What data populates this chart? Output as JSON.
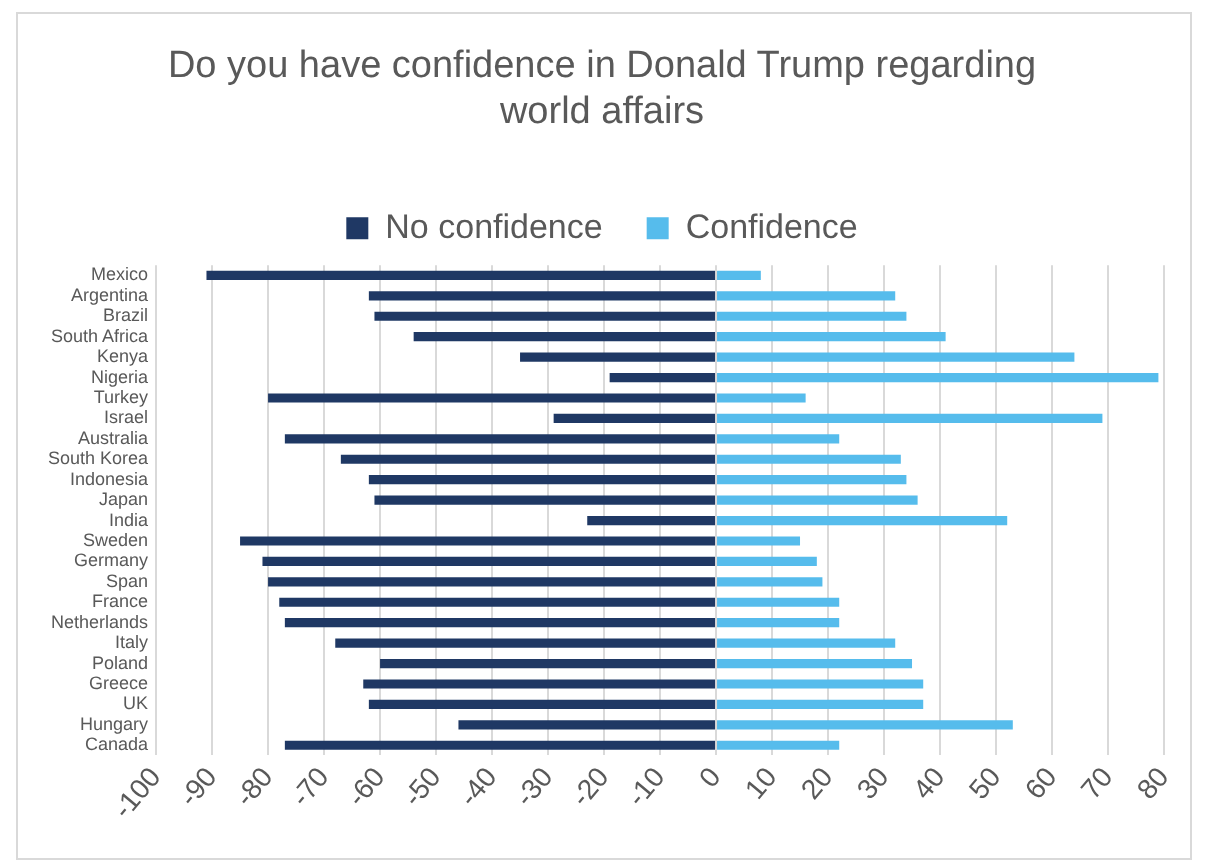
{
  "chart_data": {
    "type": "bar",
    "orientation": "horizontal",
    "stacked": true,
    "title": "Do you have confidence in Donald Trump regarding world affairs",
    "categories": [
      "Mexico",
      "Argentina",
      "Brazil",
      "South Africa",
      "Kenya",
      "Nigeria",
      "Turkey",
      "Israel",
      "Australia",
      "South Korea",
      "Indonesia",
      "Japan",
      "India",
      "Sweden",
      "Germany",
      "Span",
      "France",
      "Netherlands",
      "Italy",
      "Poland",
      "Greece",
      "UK",
      "Hungary",
      "Canada"
    ],
    "series": [
      {
        "name": "No confidence",
        "color": "#1f3864",
        "values": [
          -91,
          -62,
          -61,
          -54,
          -35,
          -19,
          -80,
          -29,
          -77,
          -67,
          -62,
          -61,
          -23,
          -85,
          -81,
          -80,
          -78,
          -77,
          -68,
          -60,
          -63,
          -62,
          -46,
          -77
        ]
      },
      {
        "name": "Confidence",
        "color": "#56bcec",
        "values": [
          8,
          32,
          34,
          41,
          64,
          79,
          16,
          69,
          22,
          33,
          34,
          36,
          52,
          15,
          18,
          19,
          22,
          22,
          32,
          35,
          37,
          37,
          53,
          22
        ]
      }
    ],
    "xlim": [
      -100,
      80
    ],
    "xticks": [
      -100,
      -90,
      -80,
      -70,
      -60,
      -50,
      -40,
      -30,
      -20,
      -10,
      0,
      10,
      20,
      30,
      40,
      50,
      60,
      70,
      80
    ],
    "grid": "x",
    "legend": "top"
  }
}
